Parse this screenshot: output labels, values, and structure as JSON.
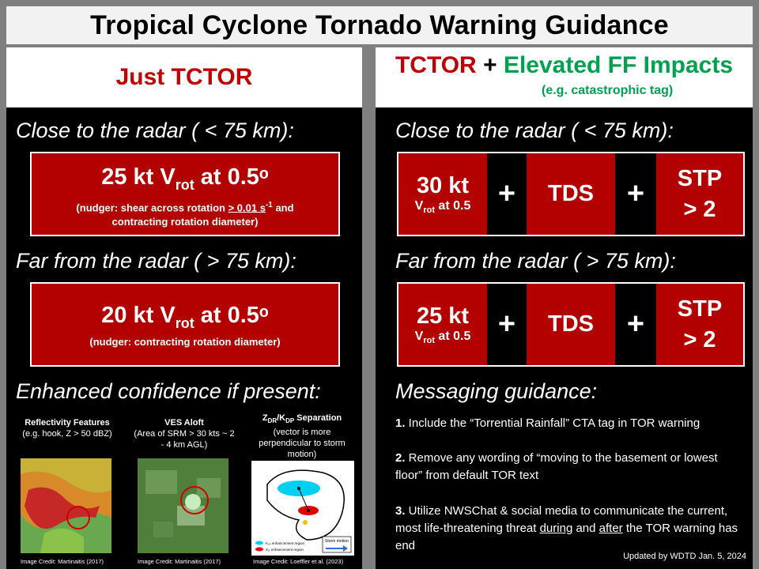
{
  "title": "Tropical Cyclone Tornado Warning Guidance",
  "left": {
    "header": "Just TCTOR",
    "close_label": "Close to the radar ( < 75 km):",
    "close_box": {
      "main": "25 kt V",
      "sub": "rot",
      "main_tail": " at 0.5ᵒ",
      "note1_pre": "(nudger: shear across rotation ",
      "note1_ge": "> 0.01 s",
      "note1_exp": "-1",
      "note1_post": " and",
      "note2": "contracting rotation diameter)"
    },
    "far_label": "Far from the radar ( > 75 km):",
    "far_box": {
      "main": "20 kt V",
      "sub": "rot",
      "main_tail": " at 0.5ᵒ",
      "note": "(nudger: contracting rotation diameter)"
    },
    "enhanced_label": "Enhanced confidence if present:",
    "thumbnails": [
      {
        "title": "Reflectivity Features",
        "caption": "(e.g. hook, Z > 50 dBZ)",
        "credit": "Image Credit: Martinaitis (2017)"
      },
      {
        "title": "VES Aloft",
        "caption": "(Area of SRM > 30 kts ~ 2 - 4 km AGL)",
        "credit": "Image Credit: Martinaitis (2017)"
      },
      {
        "title_a": "Z",
        "title_a_sub": "DR",
        "title_sep": "/K",
        "title_b_sub": "DP",
        "title_tail": " Separation",
        "caption": "(vector is more perpendicular to storm motion)",
        "credit": "Image Credit: Loeffler et al. (2023)",
        "legend_kdp": "K₂ₚ enhancement region",
        "legend_zdr": "Z₂ᵣ enhancement region",
        "storm_motion": "Storm motion"
      }
    ]
  },
  "right": {
    "header_tctor": "TCTOR",
    "header_plus": " + ",
    "header_ff": "Elevated FF Impacts",
    "header_sub": "(e.g. catastrophic  tag)",
    "close_label": "Close to the radar ( < 75 km):",
    "close_combo": {
      "speed": "30 kt",
      "vrot": "V",
      "vrot_sub": "rot",
      "vrot_tail": " at 0.5",
      "plus": "+",
      "tds": "TDS",
      "stp1": "STP",
      "stp2": "> 2"
    },
    "far_label": "Far from the radar ( > 75 km):",
    "far_combo": {
      "speed": "25 kt",
      "vrot": "V",
      "vrot_sub": "rot",
      "vrot_tail": " at 0.5",
      "plus": "+",
      "tds": "TDS",
      "stp1": "STP",
      "stp2": "> 2"
    },
    "messaging_label": "Messaging guidance:",
    "messages": {
      "m1_num": "1.",
      "m1_text": " Include the “Torrential Rainfall” CTA tag in TOR warning",
      "m2_num": "2.",
      "m2_text": " Remove any wording of “moving to the basement or lowest floor” from default TOR text",
      "m3_num": "3.",
      "m3_pre": " Utilize NWSChat & social media to communicate the current, most life-threatening threat ",
      "m3_during": "during",
      "m3_and": " and ",
      "m3_after": "after",
      "m3_post": " the TOR warning has end"
    },
    "updated": "Updated by WDTD Jan. 5, 2024"
  },
  "colors": {
    "accent_red": "#c00000",
    "box_red": "#b30000",
    "green": "#00a050"
  }
}
